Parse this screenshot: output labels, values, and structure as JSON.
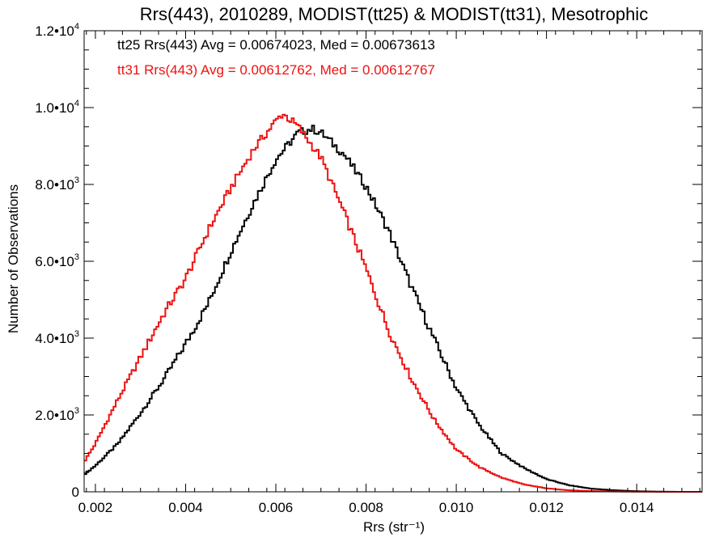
{
  "chart_data": {
    "type": "line",
    "title": "Rrs(443), 2010289, MODIST(tt25) & MODIST(tt31), Mesotrophic",
    "xlabel": "Rrs (str⁻¹)",
    "ylabel": "Number of Observations",
    "xlim": [
      0.00175,
      0.01545
    ],
    "ylim": [
      0,
      12000
    ],
    "x_ticks": [
      {
        "value": 0.002,
        "label": "0.002"
      },
      {
        "value": 0.004,
        "label": "0.004"
      },
      {
        "value": 0.006,
        "label": "0.006"
      },
      {
        "value": 0.008,
        "label": "0.008"
      },
      {
        "value": 0.01,
        "label": "0.010"
      },
      {
        "value": 0.012,
        "label": "0.012"
      },
      {
        "value": 0.014,
        "label": "0.014"
      }
    ],
    "y_ticks": [
      {
        "value": 0,
        "mant": "0",
        "exp": ""
      },
      {
        "value": 2000,
        "mant": "2.0•1",
        "exp": "3"
      },
      {
        "value": 4000,
        "mant": "4.0•1",
        "exp": "3"
      },
      {
        "value": 6000,
        "mant": "6.0•1",
        "exp": "3"
      },
      {
        "value": 8000,
        "mant": "8.0•1",
        "exp": "3"
      },
      {
        "value": 10000,
        "mant": "1.0•1",
        "exp": "4"
      },
      {
        "value": 12000,
        "mant": "1.2•1",
        "exp": "4"
      }
    ],
    "legend_position": "top-left",
    "grid": false,
    "series": [
      {
        "name": "tt25 Rrs(443) Avg = 0.00674023, Med = 0.00673613",
        "color": "#000000",
        "x": [
          0.00175,
          0.002,
          0.0025,
          0.003,
          0.0035,
          0.004,
          0.0045,
          0.005,
          0.0055,
          0.006,
          0.0065,
          0.0068,
          0.007,
          0.0075,
          0.008,
          0.0085,
          0.009,
          0.0095,
          0.01,
          0.0105,
          0.011,
          0.0115,
          0.012,
          0.0125,
          0.013,
          0.0135,
          0.014,
          0.0145,
          0.015,
          0.01545
        ],
        "values": [
          450,
          680,
          1250,
          2050,
          2900,
          3850,
          4900,
          6250,
          7500,
          8650,
          9350,
          9450,
          9350,
          8800,
          7950,
          6800,
          5350,
          4000,
          2700,
          1750,
          1000,
          620,
          330,
          170,
          80,
          40,
          15,
          5,
          0,
          0
        ]
      },
      {
        "name": "tt31 Rrs(443) Avg = 0.00612762, Med = 0.00612767",
        "color": "#ee1111",
        "x": [
          0.00175,
          0.002,
          0.0025,
          0.003,
          0.0035,
          0.004,
          0.0045,
          0.005,
          0.0055,
          0.006,
          0.00615,
          0.0065,
          0.007,
          0.0075,
          0.008,
          0.0085,
          0.009,
          0.0095,
          0.01,
          0.0105,
          0.011,
          0.0115,
          0.012,
          0.0125,
          0.013,
          0.0135,
          0.014,
          0.0145,
          0.015,
          0.01545
        ],
        "values": [
          780,
          1250,
          2400,
          3500,
          4600,
          5550,
          6800,
          7900,
          8900,
          9650,
          9850,
          9500,
          8700,
          7300,
          5800,
          4200,
          2950,
          1900,
          1100,
          650,
          370,
          190,
          90,
          40,
          18,
          8,
          3,
          1,
          0,
          0
        ]
      }
    ]
  }
}
